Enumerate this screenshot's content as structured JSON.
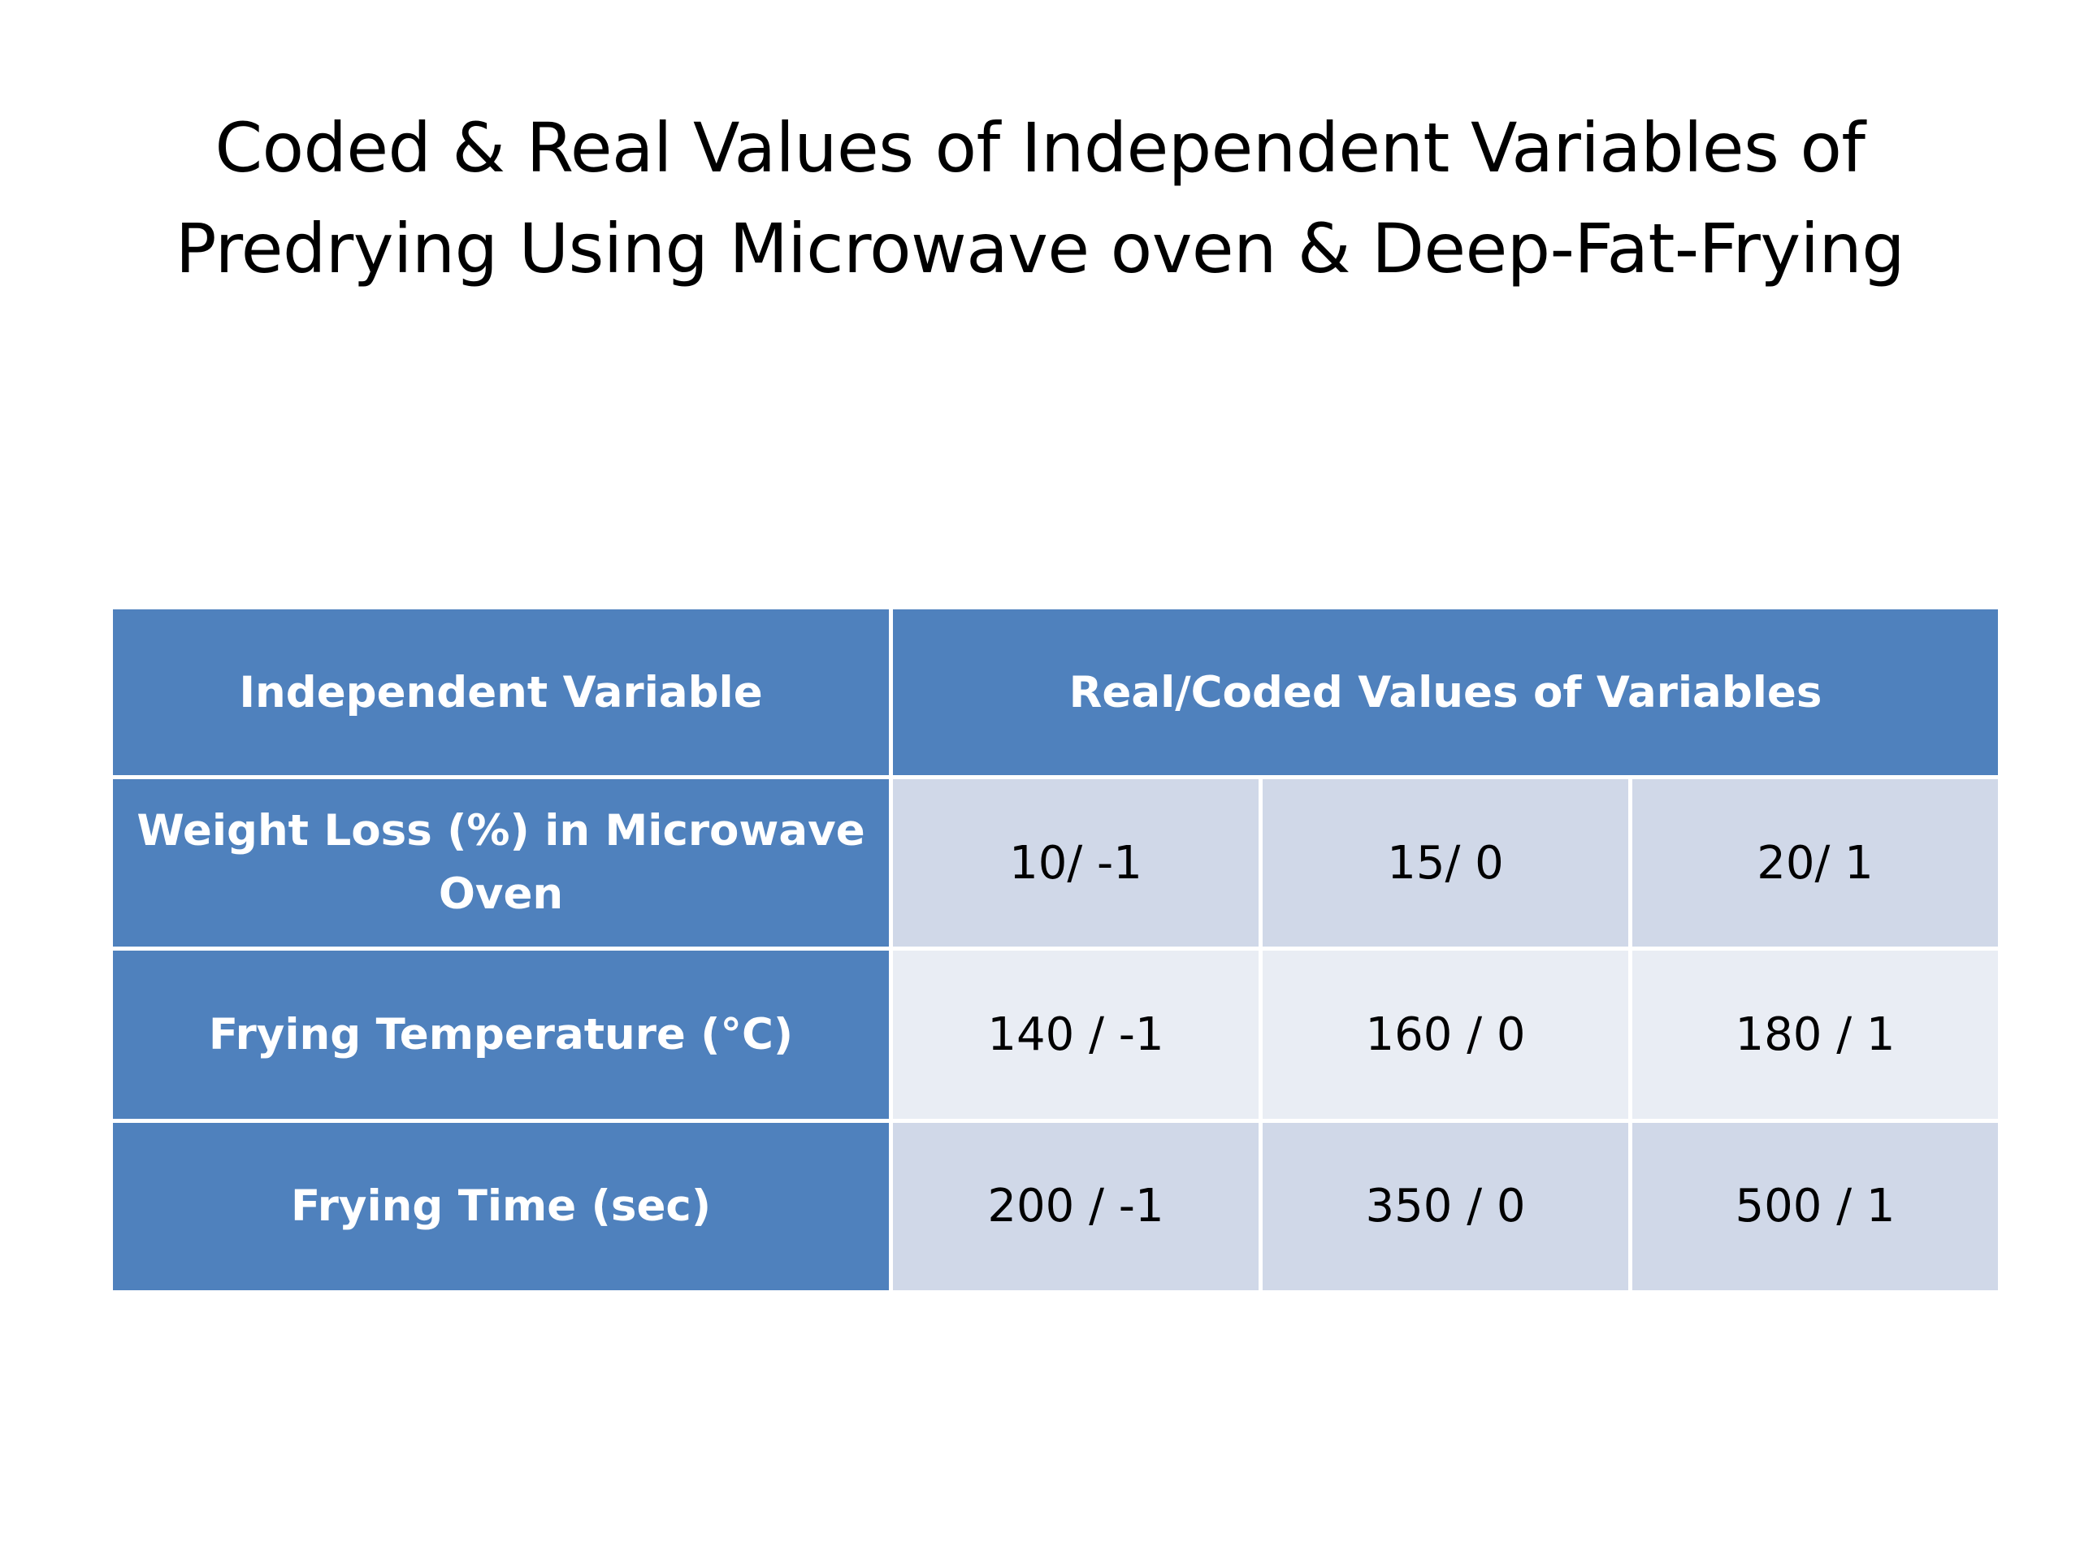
{
  "slide": {
    "title_lines": [
      "Coded & Real Values of Independent Variables of",
      "Predrying Using Microwave oven & Deep-Fat-Frying"
    ]
  },
  "table": {
    "header": {
      "variable": "Independent Variable",
      "values": "Real/Coded Values of  Variables"
    },
    "rows": [
      {
        "variable": "Weight Loss (%) in Microwave Oven",
        "values": [
          "10/ -1",
          "15/ 0",
          "20/ 1"
        ]
      },
      {
        "variable": "Frying Temperature (°C)",
        "values": [
          "140 / -1",
          "160 / 0",
          "180 / 1"
        ]
      },
      {
        "variable": "Frying Time (sec)",
        "values": [
          "200 / -1",
          "350 / 0",
          "500 / 1"
        ]
      }
    ]
  },
  "colors": {
    "header_fill": "#4f81bd",
    "row_band_dark": "#d0d8e8",
    "row_band_light": "#e9edf4",
    "border": "#ffffff"
  }
}
